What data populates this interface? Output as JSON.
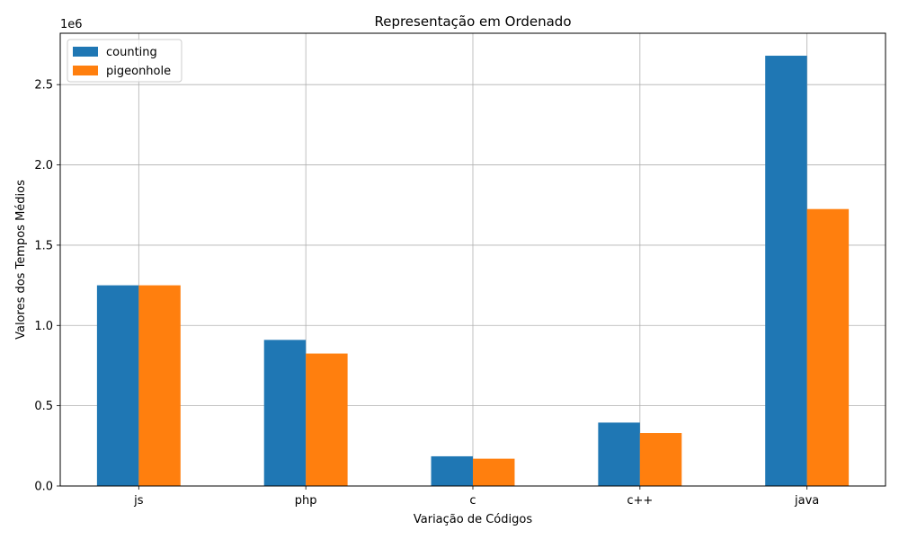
{
  "chart_data": {
    "type": "bar",
    "title": "Representação em Ordenado",
    "xlabel": "Variação de Códigos",
    "ylabel": "Valores dos Tempos Médios",
    "y_offset_label": "1e6",
    "categories": [
      "js",
      "php",
      "c",
      "c++",
      "java"
    ],
    "series": [
      {
        "name": "counting",
        "color": "#1f77b4",
        "values": [
          1250000,
          910000,
          185000,
          395000,
          2680000
        ]
      },
      {
        "name": "pigeonhole",
        "color": "#ff7f0e",
        "values": [
          1250000,
          825000,
          170000,
          330000,
          1725000
        ]
      }
    ],
    "ylim": [
      0,
      2820000
    ],
    "yticks": [
      0,
      500000,
      1000000,
      1500000,
      2000000,
      2500000
    ],
    "ytick_labels": [
      "0.0",
      "0.5",
      "1.0",
      "1.5",
      "2.0",
      "2.5"
    ],
    "grid": true,
    "legend_position": "top-left"
  }
}
